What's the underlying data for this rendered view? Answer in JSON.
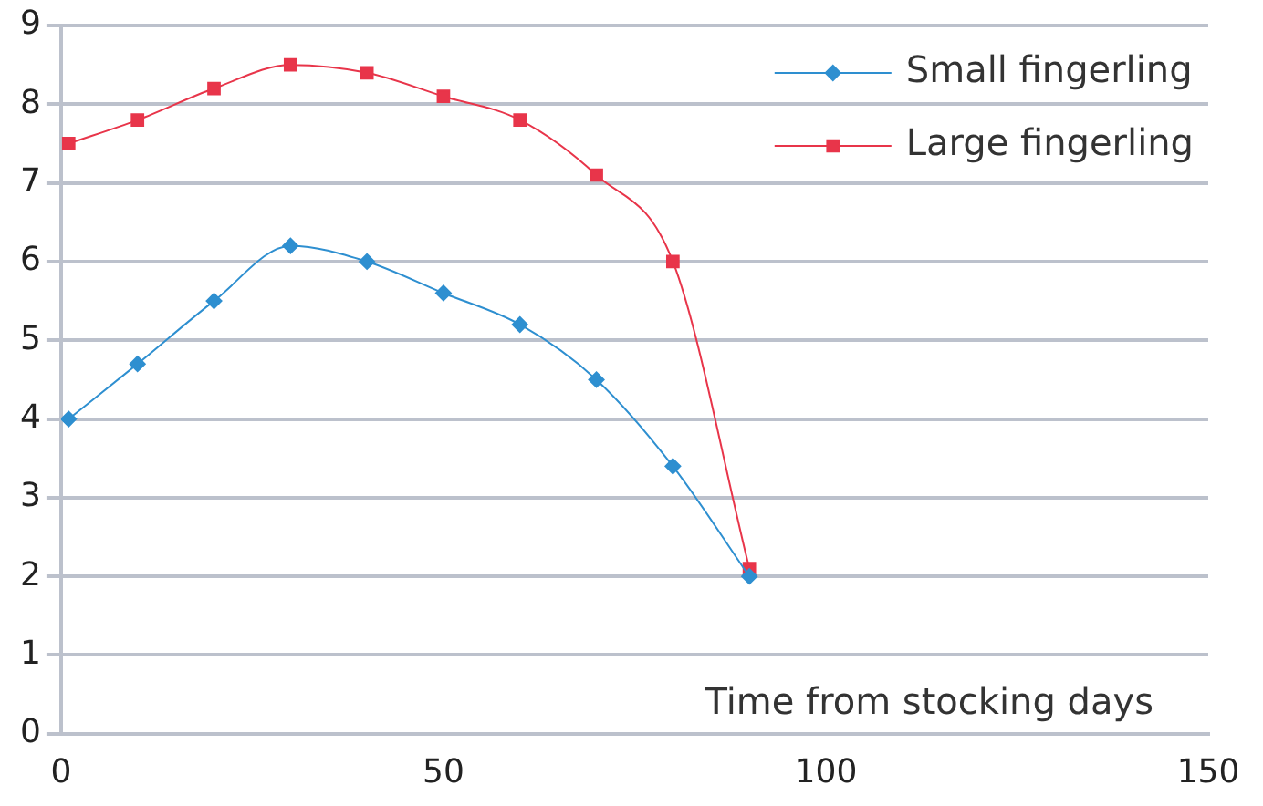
{
  "chart_data": {
    "type": "line",
    "xlabel": "Time from stocking days",
    "x": [
      1,
      10,
      20,
      30,
      40,
      50,
      60,
      70,
      80,
      90
    ],
    "series": [
      {
        "name": "Small fingerling",
        "color": "#2e8fd0",
        "marker": "diamond",
        "values": [
          4,
          4.7,
          5.5,
          6.2,
          6.0,
          5.6,
          5.2,
          4.5,
          3.4,
          2.0
        ]
      },
      {
        "name": "Large fingerling",
        "color": "#e8354a",
        "marker": "square",
        "values": [
          7.5,
          7.8,
          8.2,
          8.5,
          8.4,
          8.1,
          7.8,
          7.1,
          6.0,
          2.1
        ]
      }
    ],
    "xlim": [
      0,
      150
    ],
    "xticks": [
      0,
      50,
      100,
      150
    ],
    "ylim": [
      0,
      9
    ],
    "yticks": [
      0,
      1,
      2,
      3,
      4,
      5,
      6,
      7,
      8,
      9
    ],
    "grid": "y",
    "legend": "top right"
  }
}
